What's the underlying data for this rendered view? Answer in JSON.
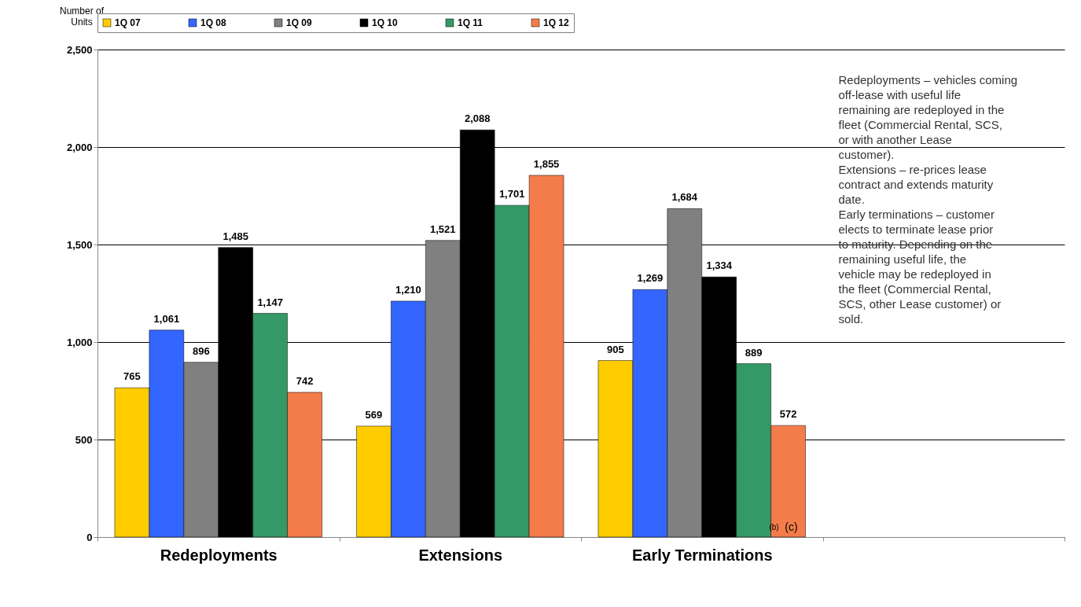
{
  "chart_data": {
    "type": "bar",
    "ylabel": "Number of Units",
    "categories": [
      "Redeployments",
      "Extensions",
      "Early Terminations",
      null
    ],
    "series": [
      {
        "name": "1Q 07",
        "color": "#ffcc00",
        "values": [
          765,
          569,
          905,
          null
        ],
        "value_labels": [
          "765",
          "569",
          "905",
          null
        ]
      },
      {
        "name": "1Q 08",
        "color": "#3366ff",
        "values": [
          1061,
          1210,
          1269,
          null
        ],
        "value_labels": [
          "1,061",
          "1,210",
          "1,269",
          null
        ]
      },
      {
        "name": "1Q 09",
        "color": "#808080",
        "values": [
          896,
          1521,
          1684,
          null
        ],
        "value_labels": [
          "896",
          "1,521",
          "1,684",
          null
        ]
      },
      {
        "name": "1Q 10",
        "color": "#000000",
        "values": [
          1485,
          2088,
          1334,
          null
        ],
        "value_labels": [
          "1,485",
          "2,088",
          "1,334",
          null
        ]
      },
      {
        "name": "1Q 11",
        "color": "#339966",
        "values": [
          1147,
          1701,
          889,
          null
        ],
        "value_labels": [
          "1,147",
          "1,701",
          "889",
          null
        ]
      },
      {
        "name": "1Q 12",
        "color": "#f47c4a",
        "values": [
          742,
          1855,
          572,
          null
        ],
        "value_labels": [
          "742",
          "1,855",
          "572",
          null
        ]
      }
    ],
    "ylim": [
      0,
      2500
    ],
    "yticks": [
      0,
      {
        "value": 500,
        "label": "500"
      },
      {
        "value": 1000,
        "label": "1,000"
      },
      {
        "value": 1500,
        "label": "1,500"
      },
      {
        "value": 2000,
        "label": "2,000"
      },
      {
        "value": 2500,
        "label": "2,500"
      }
    ],
    "grid": "y",
    "legend": "top",
    "annotations": [
      "Redeployments – vehicles coming off-lease with useful life remaining are redeployed in the fleet (Commercial Rental, SCS, or with another Lease customer).",
      "Extensions – re-prices lease contract and extends maturity date.",
      "Early terminations – customer elects to terminate lease prior to maturity. Depending on the remaining useful life, the vehicle may be redeployed in the fleet (Commercial Rental, SCS, other Lease customer) or sold.",
      "(b)",
      "(c)"
    ]
  }
}
